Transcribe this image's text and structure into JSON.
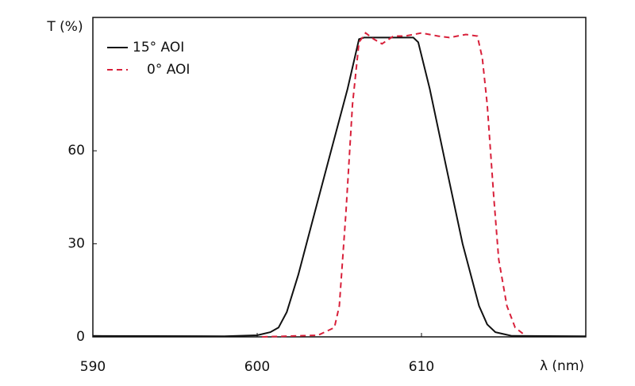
{
  "chart_data": {
    "type": "line",
    "y_label": "T (%)",
    "x_label": "λ (nm)",
    "xlim": [
      590,
      620
    ],
    "ylim": [
      0,
      103
    ],
    "xticks": [
      590,
      600,
      610
    ],
    "yticks": [
      0,
      30,
      60
    ],
    "grid": false,
    "legend": "upper left",
    "series": [
      {
        "name": "15° AOI",
        "color": "#111111",
        "linestyle": "solid",
        "x": [
          590,
          598,
          600,
          600.8,
          601.3,
          601.8,
          602.5,
          603.5,
          604.5,
          605.5,
          606.2,
          606.5,
          609.5,
          609.8,
          610.5,
          611.5,
          612.5,
          613.5,
          614,
          614.5,
          615.5,
          620
        ],
        "values": [
          0.3,
          0.2,
          0.5,
          1.5,
          3,
          8,
          20,
          40,
          60,
          80,
          96,
          96.5,
          96.5,
          95,
          80,
          55,
          30,
          10,
          4,
          1.5,
          0.3,
          0.2
        ]
      },
      {
        "name": "0° AOI",
        "color": "#d8203a",
        "linestyle": "dashed",
        "x": [
          600.3,
          603.7,
          604.7,
          605,
          605.4,
          605.8,
          606.2,
          606.6,
          607.1,
          607.6,
          608.3,
          609,
          610,
          611,
          611.7,
          612.7,
          613.4,
          613.7,
          614,
          614.4,
          614.7,
          615.2,
          615.7,
          616.3
        ],
        "values": [
          0,
          0.5,
          3,
          10,
          40,
          75,
          95,
          98,
          96,
          94.5,
          97,
          97,
          98,
          97,
          96.5,
          97.5,
          97,
          90,
          75,
          45,
          25,
          10,
          3,
          0.5
        ]
      }
    ]
  }
}
